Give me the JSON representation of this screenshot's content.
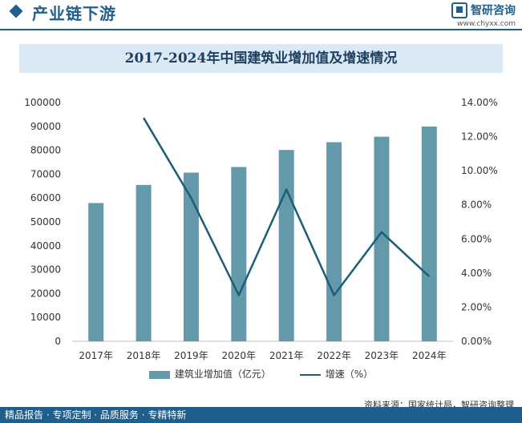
{
  "header": {
    "section_title": "产业链下游",
    "brand_name": "智研咨询",
    "brand_url": "www.chyxx.com"
  },
  "chart_data": {
    "type": "bar",
    "title": "2017-2024年中国建筑业增加值及增速情况",
    "categories": [
      "2017年",
      "2018年",
      "2019年",
      "2020年",
      "2021年",
      "2022年",
      "2023年",
      "2024年"
    ],
    "series": [
      {
        "name": "建筑业增加值（亿元）",
        "type": "bar",
        "axis": "left",
        "color": "#6499ac",
        "values": [
          57906,
          65493,
          70648,
          72996,
          80138,
          83383,
          85691,
          89949
        ]
      },
      {
        "name": "增速（%）",
        "type": "line",
        "axis": "right",
        "color": "#1a5e78",
        "values": [
          null,
          13.1,
          8.4,
          2.7,
          8.9,
          2.7,
          6.4,
          3.8
        ]
      }
    ],
    "y_left": {
      "min": 0,
      "max": 100000,
      "ticks": [
        "0",
        "10000",
        "20000",
        "30000",
        "40000",
        "50000",
        "60000",
        "70000",
        "80000",
        "90000",
        "100000"
      ]
    },
    "y_right": {
      "min": 0,
      "max": 14,
      "ticks": [
        "0.00%",
        "2.00%",
        "4.00%",
        "6.00%",
        "8.00%",
        "10.00%",
        "12.00%",
        "14.00%"
      ]
    },
    "legend_position": "bottom",
    "grid": false
  },
  "footer": {
    "source": "资料来源：国家统计局，智研咨询整理",
    "tagline": "精品报告 · 专项定制 · 品质服务 · 专精特新"
  }
}
